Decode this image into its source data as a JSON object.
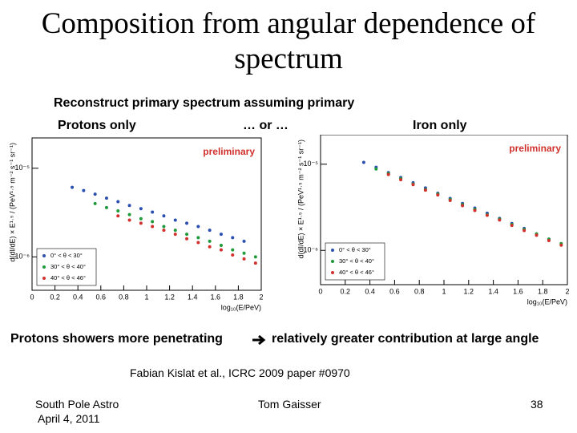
{
  "slide": {
    "title": "Composition from angular dependence of spectrum",
    "subtitle": "Reconstruct primary spectrum assuming primary",
    "left_label": "Protons only",
    "middle_label": "… or …",
    "right_label": "Iron only",
    "conclusion_start": "Protons showers more penetrating",
    "conclusion_end": "relatively greater contribution at large angle",
    "citation": "Fabian Kislat et al., ICRC 2009 paper #0970",
    "footer_left_1": "South Pole Astro",
    "footer_left_2": "April 4, 2011",
    "footer_center": "Tom Gaisser",
    "page_number": 38
  },
  "chart_data": [
    {
      "type": "scatter",
      "annotation": "preliminary",
      "xlabel": "log₁₀(E/PeV)",
      "ylabel": "d(dI/dE) × E¹·⁵ / (PeV¹·⁵ m⁻² s⁻¹ sr⁻¹)",
      "xlim": [
        0,
        2
      ],
      "xticks": [
        0,
        0.2,
        0.4,
        0.6,
        0.8,
        1,
        1.2,
        1.4,
        1.6,
        1.8,
        2
      ],
      "ylim": [
        4.2e-07,
        2.2e-05
      ],
      "yticks": [
        {
          "value": 1e-05,
          "label": "10⁻⁵"
        },
        {
          "value": 1e-06,
          "label": "10⁻⁶"
        }
      ],
      "ylog": true,
      "legend": "lower left",
      "series": [
        {
          "name": "0° < θ < 30°",
          "color": "#2a4fb0",
          "x": [
            0.35,
            0.45,
            0.55,
            0.65,
            0.75,
            0.85,
            0.95,
            1.05,
            1.15,
            1.25,
            1.35,
            1.45,
            1.55,
            1.65,
            1.75,
            1.85
          ],
          "values": [
            6.1e-06,
            5.6e-06,
            5.1e-06,
            4.6e-06,
            4.2e-06,
            3.8e-06,
            3.5e-06,
            3.2e-06,
            2.9e-06,
            2.6e-06,
            2.4e-06,
            2.2e-06,
            2e-06,
            1.8e-06,
            1.65e-06,
            1.5e-06
          ]
        },
        {
          "name": "30° < θ < 40°",
          "color": "#1f9a3a",
          "x": [
            0.55,
            0.65,
            0.75,
            0.85,
            0.95,
            1.05,
            1.15,
            1.25,
            1.35,
            1.45,
            1.55,
            1.65,
            1.75,
            1.85,
            1.95
          ],
          "values": [
            4e-06,
            3.6e-06,
            3.3e-06,
            3e-06,
            2.7e-06,
            2.5e-06,
            2.2e-06,
            2e-06,
            1.8e-06,
            1.65e-06,
            1.5e-06,
            1.35e-06,
            1.2e-06,
            1.1e-06,
            1e-06
          ]
        },
        {
          "name": "40° < θ < 46°",
          "color": "#d0312d",
          "x": [
            0.75,
            0.85,
            0.95,
            1.05,
            1.15,
            1.25,
            1.35,
            1.45,
            1.55,
            1.65,
            1.75,
            1.85,
            1.95
          ],
          "values": [
            2.9e-06,
            2.6e-06,
            2.4e-06,
            2.2e-06,
            2e-06,
            1.8e-06,
            1.6e-06,
            1.45e-06,
            1.3e-06,
            1.2e-06,
            1.05e-06,
            9.5e-07,
            8.5e-07
          ]
        }
      ]
    },
    {
      "type": "scatter",
      "annotation": "preliminary",
      "xlabel": "log₁₀(E/PeV)",
      "ylabel": "d(dI/dE) × E¹·⁵ / (PeV¹·⁵ m⁻² s⁻¹ sr⁻¹)",
      "xlim": [
        0,
        2
      ],
      "xticks": [
        0,
        0.2,
        0.4,
        0.6,
        0.8,
        1,
        1.2,
        1.4,
        1.6,
        1.8,
        2
      ],
      "ylim": [
        4e-07,
        2.2e-05
      ],
      "yticks": [
        {
          "value": 1e-05,
          "label": "10⁻⁵"
        },
        {
          "value": 1e-06,
          "label": "10⁻⁶"
        }
      ],
      "ylog": true,
      "legend": "lower left",
      "series": [
        {
          "name": "0° < θ < 30°",
          "color": "#2a4fb0",
          "x": [
            0.35,
            0.45,
            0.55,
            0.65,
            0.75,
            0.85,
            0.95,
            1.05,
            1.15,
            1.25,
            1.35,
            1.45,
            1.55,
            1.65,
            1.75,
            1.85
          ],
          "values": [
            1.05e-05,
            9.2e-06,
            8e-06,
            7e-06,
            6.1e-06,
            5.3e-06,
            4.6e-06,
            4e-06,
            3.5e-06,
            3.1e-06,
            2.7e-06,
            2.35e-06,
            2.05e-06,
            1.8e-06,
            1.55e-06,
            1.35e-06
          ]
        },
        {
          "name": "30° < θ < 40°",
          "color": "#1f9a3a",
          "x": [
            0.45,
            0.55,
            0.65,
            0.75,
            0.85,
            0.95,
            1.05,
            1.15,
            1.25,
            1.35,
            1.45,
            1.55,
            1.65,
            1.75,
            1.85,
            1.95
          ],
          "values": [
            8.8e-06,
            7.8e-06,
            6.8e-06,
            5.9e-06,
            5.1e-06,
            4.5e-06,
            3.9e-06,
            3.4e-06,
            3e-06,
            2.6e-06,
            2.3e-06,
            2e-06,
            1.75e-06,
            1.55e-06,
            1.35e-06,
            1.2e-06
          ]
        },
        {
          "name": "40° < θ < 46°",
          "color": "#d0312d",
          "x": [
            0.55,
            0.65,
            0.75,
            0.85,
            0.95,
            1.05,
            1.15,
            1.25,
            1.35,
            1.45,
            1.55,
            1.65,
            1.75,
            1.85,
            1.95
          ],
          "values": [
            7.6e-06,
            6.6e-06,
            5.8e-06,
            5e-06,
            4.4e-06,
            3.8e-06,
            3.3e-06,
            2.9e-06,
            2.55e-06,
            2.25e-06,
            1.95e-06,
            1.7e-06,
            1.5e-06,
            1.3e-06,
            1.15e-06
          ]
        }
      ]
    }
  ]
}
